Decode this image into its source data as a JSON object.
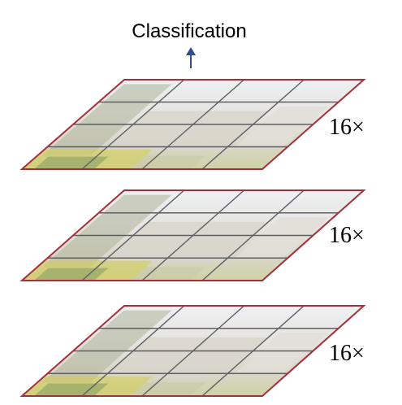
{
  "title": "Classification",
  "layers": [
    {
      "multiplier": "16×"
    },
    {
      "multiplier": "16×"
    },
    {
      "multiplier": "16×"
    }
  ],
  "grid": {
    "rows": 4,
    "cols": 4
  },
  "colors": {
    "border": "#a3313a",
    "grid_line": "#5e5e66",
    "arrow": "#2e4e8c",
    "sky": "#eceff3",
    "building": "#d9d5cc",
    "tree": "#aeb59a",
    "foliage_yellow": "#d3cf67",
    "foliage_green": "#7f9a62"
  }
}
